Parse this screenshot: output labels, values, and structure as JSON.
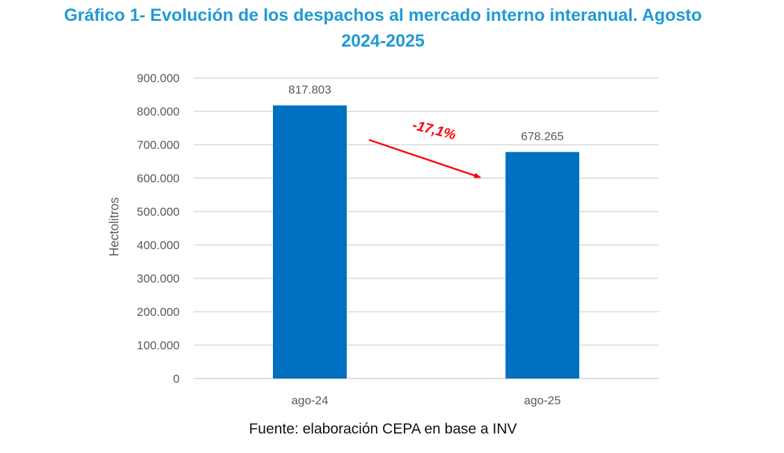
{
  "title_line1": "Gráfico 1- Evolución de los despachos al mercado interno interanual. Agosto",
  "title_line2": "2024-2025",
  "source": "Fuente: elaboración CEPA en base a INV",
  "colors": {
    "title": "#1f9ad6",
    "bar": "#0070c0",
    "grid": "#d9d9d9",
    "axis_text": "#595959",
    "annotation": "#ff0000"
  },
  "chart_data": {
    "type": "bar",
    "categories": [
      "ago-24",
      "ago-25"
    ],
    "values": [
      817803,
      678265
    ],
    "data_labels": [
      "817.803",
      "678.265"
    ],
    "ylabel": "Hectolitros",
    "ylim": [
      0,
      900000
    ],
    "yticks": [
      0,
      100000,
      200000,
      300000,
      400000,
      500000,
      600000,
      700000,
      800000,
      900000
    ],
    "ytick_labels": [
      "0",
      "100.000",
      "200.000",
      "300.000",
      "400.000",
      "500.000",
      "600.000",
      "700.000",
      "800.000",
      "900.000"
    ],
    "grid": true,
    "legend": false,
    "annotation": {
      "text": "-17,1%",
      "type": "arrow",
      "from": "ago-24",
      "to": "ago-25"
    }
  }
}
